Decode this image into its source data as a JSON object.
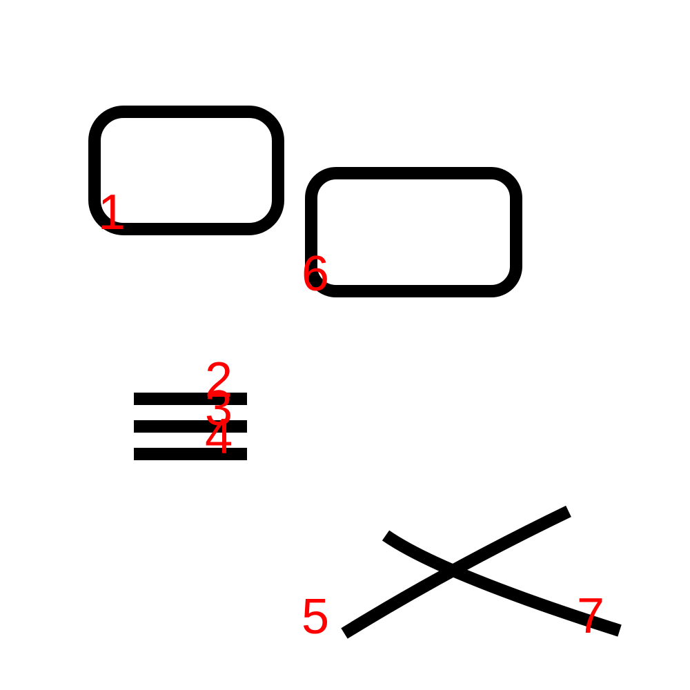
{
  "colors": {
    "background": "#ffffff",
    "stroke": "#000000",
    "label": "#ff0000"
  },
  "strokes": [
    {
      "id": "1",
      "kind": "rounded-rectangle",
      "label": "1"
    },
    {
      "id": "6",
      "kind": "rounded-rectangle",
      "label": "6"
    },
    {
      "id": "2",
      "kind": "horizontal-line",
      "label": "2"
    },
    {
      "id": "3",
      "kind": "horizontal-line",
      "label": "3"
    },
    {
      "id": "4",
      "kind": "horizontal-line",
      "label": "4"
    },
    {
      "id": "5",
      "kind": "diagonal-line",
      "label": "5"
    },
    {
      "id": "7",
      "kind": "curved-line",
      "label": "7"
    }
  ]
}
